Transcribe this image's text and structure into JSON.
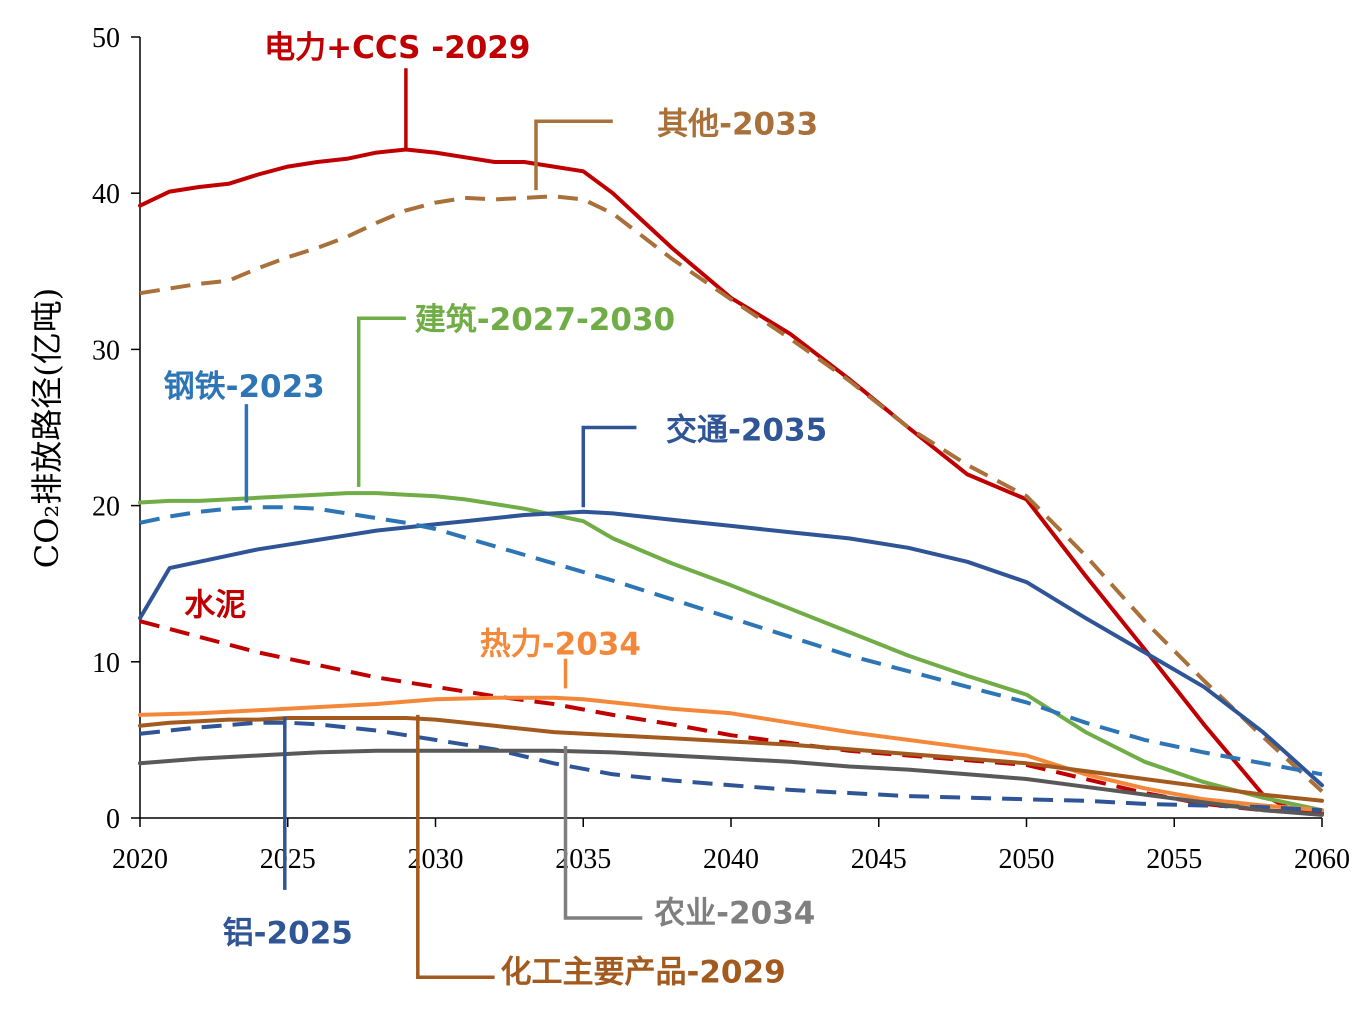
{
  "chart_data": {
    "type": "line",
    "title": "",
    "xlabel": "",
    "ylabel": "CO₂排放路径(亿吨)",
    "xlim": [
      2020,
      2060
    ],
    "ylim": [
      0,
      50
    ],
    "xticks": [
      2020,
      2025,
      2030,
      2035,
      2040,
      2045,
      2050,
      2055,
      2060
    ],
    "yticks": [
      0,
      10,
      20,
      30,
      40,
      50
    ],
    "grid": false,
    "series": [
      {
        "id": "power",
        "color": "#C00000",
        "dash": false,
        "x": [
          2020,
          2021,
          2022,
          2023,
          2024,
          2025,
          2026,
          2027,
          2028,
          2029,
          2030,
          2031,
          2032,
          2033,
          2034,
          2035,
          2036,
          2038,
          2040,
          2042,
          2044,
          2046,
          2048,
          2050,
          2052,
          2054,
          2056,
          2058,
          2059,
          2060
        ],
        "y": [
          39.2,
          40.1,
          40.4,
          40.6,
          41.2,
          41.7,
          42.0,
          42.2,
          42.6,
          42.8,
          42.6,
          42.3,
          42.0,
          42.0,
          41.7,
          41.4,
          40.0,
          36.5,
          33.3,
          31.0,
          28.1,
          25.0,
          22.0,
          20.4,
          15.5,
          10.8,
          6.0,
          1.5,
          0.5,
          0.3
        ]
      },
      {
        "id": "other",
        "color": "#A9703A",
        "dash": true,
        "x": [
          2020,
          2022,
          2023,
          2024,
          2025,
          2026,
          2027,
          2028,
          2029,
          2030,
          2031,
          2032,
          2033,
          2034,
          2035,
          2036,
          2038,
          2040,
          2042,
          2044,
          2046,
          2048,
          2050,
          2052,
          2054,
          2056,
          2058,
          2060
        ],
        "y": [
          33.6,
          34.2,
          34.4,
          35.2,
          35.9,
          36.5,
          37.2,
          38.1,
          38.9,
          39.4,
          39.7,
          39.6,
          39.7,
          39.8,
          39.6,
          38.7,
          35.8,
          33.2,
          30.7,
          28.0,
          25.0,
          22.6,
          20.6,
          16.8,
          12.6,
          8.8,
          5.2,
          1.7
        ]
      },
      {
        "id": "building",
        "color": "#70AD47",
        "dash": false,
        "x": [
          2020,
          2021,
          2022,
          2023,
          2024,
          2025,
          2026,
          2027,
          2028,
          2029,
          2030,
          2031,
          2032,
          2033,
          2034,
          2035,
          2036,
          2038,
          2040,
          2042,
          2044,
          2046,
          2048,
          2050,
          2052,
          2054,
          2056,
          2058,
          2060
        ],
        "y": [
          20.2,
          20.3,
          20.3,
          20.4,
          20.5,
          20.6,
          20.7,
          20.8,
          20.8,
          20.7,
          20.6,
          20.4,
          20.1,
          19.8,
          19.4,
          19.0,
          17.9,
          16.3,
          14.9,
          13.4,
          11.9,
          10.4,
          9.1,
          7.9,
          5.5,
          3.6,
          2.3,
          1.3,
          0.5
        ]
      },
      {
        "id": "transport",
        "color": "#2F5597",
        "dash": false,
        "x": [
          2020,
          2021,
          2022,
          2023,
          2024,
          2025,
          2026,
          2027,
          2028,
          2029,
          2030,
          2031,
          2032,
          2033,
          2034,
          2035,
          2036,
          2038,
          2040,
          2042,
          2044,
          2046,
          2048,
          2050,
          2052,
          2054,
          2056,
          2058,
          2060
        ],
        "y": [
          12.8,
          16.0,
          16.4,
          16.8,
          17.2,
          17.5,
          17.8,
          18.1,
          18.4,
          18.6,
          18.8,
          19.0,
          19.2,
          19.4,
          19.5,
          19.6,
          19.5,
          19.1,
          18.7,
          18.3,
          17.9,
          17.3,
          16.4,
          15.1,
          12.8,
          10.6,
          8.4,
          5.5,
          2.1
        ]
      },
      {
        "id": "steel",
        "color": "#2E75B6",
        "dash": true,
        "x": [
          2020,
          2021,
          2022,
          2023,
          2024,
          2025,
          2026,
          2027,
          2028,
          2029,
          2030,
          2032,
          2034,
          2036,
          2038,
          2040,
          2042,
          2044,
          2046,
          2048,
          2050,
          2052,
          2054,
          2056,
          2058,
          2060
        ],
        "y": [
          18.9,
          19.3,
          19.6,
          19.8,
          19.9,
          19.9,
          19.8,
          19.5,
          19.2,
          18.9,
          18.5,
          17.4,
          16.3,
          15.2,
          14.0,
          12.8,
          11.6,
          10.4,
          9.4,
          8.4,
          7.4,
          6.1,
          5.0,
          4.2,
          3.5,
          2.8
        ]
      },
      {
        "id": "cement",
        "color": "#C00000",
        "dash": true,
        "x": [
          2020,
          2022,
          2024,
          2026,
          2028,
          2030,
          2032,
          2034,
          2036,
          2038,
          2040,
          2042,
          2044,
          2046,
          2048,
          2050,
          2052,
          2054,
          2056,
          2058,
          2060
        ],
        "y": [
          12.6,
          11.6,
          10.6,
          9.8,
          9.0,
          8.4,
          7.8,
          7.3,
          6.6,
          6.0,
          5.3,
          4.8,
          4.3,
          4.0,
          3.7,
          3.4,
          2.5,
          1.6,
          0.9,
          0.5,
          0.3
        ]
      },
      {
        "id": "heat",
        "color": "#F4883A",
        "dash": false,
        "x": [
          2020,
          2022,
          2024,
          2026,
          2028,
          2030,
          2032,
          2034,
          2035,
          2036,
          2038,
          2040,
          2042,
          2044,
          2046,
          2048,
          2050,
          2052,
          2054,
          2056,
          2058,
          2060
        ],
        "y": [
          6.6,
          6.7,
          6.9,
          7.1,
          7.3,
          7.6,
          7.7,
          7.7,
          7.6,
          7.4,
          7.0,
          6.7,
          6.1,
          5.5,
          5.0,
          4.5,
          4.0,
          2.8,
          1.9,
          1.2,
          0.8,
          0.5
        ]
      },
      {
        "id": "chemical",
        "color": "#A35A1F",
        "dash": false,
        "x": [
          2020,
          2021,
          2022,
          2023,
          2024,
          2025,
          2026,
          2027,
          2028,
          2029,
          2030,
          2032,
          2034,
          2036,
          2038,
          2040,
          2042,
          2044,
          2046,
          2048,
          2050,
          2052,
          2054,
          2056,
          2058,
          2060
        ],
        "y": [
          5.9,
          6.1,
          6.2,
          6.3,
          6.3,
          6.4,
          6.4,
          6.4,
          6.4,
          6.4,
          6.3,
          5.9,
          5.5,
          5.3,
          5.1,
          4.9,
          4.7,
          4.4,
          4.1,
          3.8,
          3.5,
          3.0,
          2.5,
          2.0,
          1.5,
          1.1
        ]
      },
      {
        "id": "aluminum",
        "color": "#2F5597",
        "dash": true,
        "x": [
          2020,
          2022,
          2024,
          2025,
          2026,
          2028,
          2030,
          2032,
          2034,
          2036,
          2038,
          2040,
          2042,
          2044,
          2046,
          2048,
          2050,
          2052,
          2054,
          2056,
          2058,
          2060
        ],
        "y": [
          5.4,
          5.8,
          6.1,
          6.1,
          6.0,
          5.6,
          5.0,
          4.4,
          3.5,
          2.8,
          2.4,
          2.1,
          1.8,
          1.6,
          1.4,
          1.3,
          1.2,
          1.1,
          0.9,
          0.8,
          0.7,
          0.5
        ]
      },
      {
        "id": "agriculture",
        "color": "#595959",
        "dash": false,
        "x": [
          2020,
          2022,
          2024,
          2026,
          2028,
          2030,
          2032,
          2034,
          2036,
          2038,
          2040,
          2042,
          2044,
          2046,
          2048,
          2050,
          2052,
          2054,
          2056,
          2058,
          2060
        ],
        "y": [
          3.5,
          3.8,
          4.0,
          4.2,
          4.3,
          4.3,
          4.3,
          4.3,
          4.2,
          4.0,
          3.8,
          3.6,
          3.3,
          3.1,
          2.8,
          2.5,
          2.0,
          1.5,
          1.0,
          0.5,
          0.2
        ]
      }
    ],
    "annotations": [
      {
        "text": "电力+CCS -2029",
        "color": "#C00000",
        "leader": [
          [
            2029,
            42.9
          ],
          [
            2029,
            48.0
          ]
        ],
        "label_at": [
          2024.2,
          49.2
        ]
      },
      {
        "text": "其他-2033",
        "color": "#A9703A",
        "leader": [
          [
            2033.4,
            40.2
          ],
          [
            2033.4,
            44.6
          ],
          [
            2036,
            44.6
          ]
        ],
        "label_at": [
          2037.5,
          44.3
        ]
      },
      {
        "text": "建筑-2027-2030",
        "color": "#70AD47",
        "leader": [
          [
            2027.4,
            21.2
          ],
          [
            2027.4,
            32.0
          ],
          [
            2029,
            32.0
          ]
        ],
        "label_at": [
          2029.3,
          31.8
        ]
      },
      {
        "text": "钢铁-2023",
        "color": "#2E75B6",
        "leader": [
          [
            2023.6,
            20.2
          ],
          [
            2023.6,
            26.5
          ]
        ],
        "label_at": [
          2020.8,
          27.5
        ]
      },
      {
        "text": "交通-2035",
        "color": "#2F5597",
        "leader": [
          [
            2035,
            19.9
          ],
          [
            2035,
            25.0
          ],
          [
            2036.8,
            25.0
          ]
        ],
        "label_at": [
          2037.8,
          24.7
        ]
      },
      {
        "text": "水泥",
        "color": "#C00000",
        "leader": null,
        "label_at": [
          2021.5,
          13.5
        ]
      },
      {
        "text": "热力-2034",
        "color": "#F4883A",
        "leader": [
          [
            2034.4,
            8.3
          ],
          [
            2034.4,
            10.2
          ]
        ],
        "label_at": [
          2031.5,
          11.0
        ]
      },
      {
        "text": "铝-2025",
        "color": "#2F5597",
        "leader": [
          [
            2024.9,
            6.5
          ],
          [
            2024.9,
            -4.6
          ]
        ],
        "label_at": [
          2022.8,
          -7.5
        ]
      },
      {
        "text": "化工主要产品-2029",
        "color": "#A35A1F",
        "leader": [
          [
            2029.4,
            6.6
          ],
          [
            2029.4,
            -10.2
          ],
          [
            2032,
            -10.2
          ]
        ],
        "label_at": [
          2032.2,
          -10.0
        ]
      },
      {
        "text": "农业-2034",
        "color": "#7F7F7F",
        "leader": [
          [
            2034.4,
            4.6
          ],
          [
            2034.4,
            -6.4
          ],
          [
            2037,
            -6.4
          ]
        ],
        "label_at": [
          2037.4,
          -6.2
        ]
      }
    ]
  }
}
